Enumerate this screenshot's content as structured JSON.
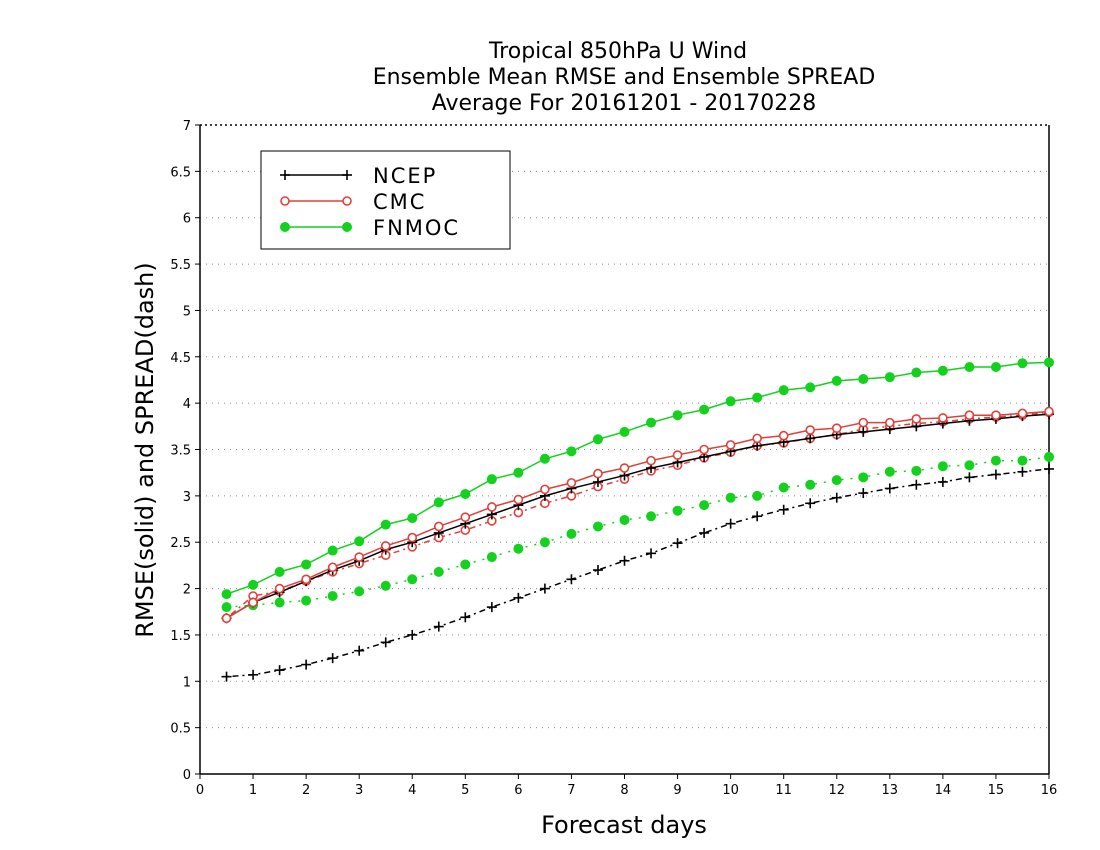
{
  "chart_data": {
    "type": "line",
    "title_lines": [
      "Tropical 850hPa U Wind",
      "Ensemble Mean RMSE and Ensemble SPREAD",
      "Average For 20161201 - 20170228"
    ],
    "xlabel": "Forecast days",
    "ylabel": "RMSE(solid) and SPREAD(dash)",
    "xlim": [
      0,
      16
    ],
    "ylim": [
      0,
      7
    ],
    "x_ticks": [
      "0",
      "1",
      "2",
      "3",
      "4",
      "5",
      "6",
      "7",
      "8",
      "9",
      "10",
      "11",
      "12",
      "13",
      "14",
      "15",
      "16"
    ],
    "y_ticks": [
      "0",
      "0.5",
      "1",
      "1.5",
      "2",
      "2.5",
      "3",
      "3.5",
      "4",
      "4.5",
      "5",
      "5.5",
      "6",
      "6.5",
      "7"
    ],
    "grid": "horizontal dotted",
    "legend_position": "top-left",
    "x": [
      0.5,
      1,
      1.5,
      2,
      2.5,
      3,
      3.5,
      4,
      4.5,
      5,
      5.5,
      6,
      6.5,
      7,
      7.5,
      8,
      8.5,
      9,
      9.5,
      10,
      10.5,
      11,
      11.5,
      12,
      12.5,
      13,
      13.5,
      14,
      14.5,
      15,
      15.5,
      16
    ],
    "series": [
      {
        "name": "NCEP",
        "color": "#000000",
        "marker": "plus",
        "rmse": [
          1.68,
          1.85,
          1.96,
          2.08,
          2.2,
          2.3,
          2.42,
          2.5,
          2.6,
          2.7,
          2.8,
          2.9,
          3.0,
          3.08,
          3.15,
          3.22,
          3.3,
          3.36,
          3.42,
          3.48,
          3.54,
          3.58,
          3.62,
          3.66,
          3.69,
          3.72,
          3.75,
          3.78,
          3.81,
          3.83,
          3.86,
          3.88
        ],
        "spread": [
          1.05,
          1.07,
          1.12,
          1.18,
          1.25,
          1.33,
          1.42,
          1.5,
          1.59,
          1.69,
          1.8,
          1.9,
          2.0,
          2.1,
          2.2,
          2.3,
          2.38,
          2.49,
          2.6,
          2.7,
          2.78,
          2.85,
          2.92,
          2.98,
          3.03,
          3.08,
          3.12,
          3.15,
          3.2,
          3.23,
          3.26,
          3.29
        ]
      },
      {
        "name": "CMC",
        "color": "#e0403a",
        "marker": "open-circle",
        "rmse": [
          1.68,
          1.85,
          2.0,
          2.1,
          2.23,
          2.34,
          2.46,
          2.55,
          2.67,
          2.77,
          2.88,
          2.96,
          3.07,
          3.14,
          3.24,
          3.3,
          3.38,
          3.44,
          3.5,
          3.55,
          3.62,
          3.65,
          3.71,
          3.73,
          3.79,
          3.79,
          3.83,
          3.84,
          3.87,
          3.87,
          3.89,
          3.91
        ],
        "spread": [
          1.68,
          1.92,
          1.97,
          2.08,
          2.18,
          2.27,
          2.36,
          2.45,
          2.55,
          2.63,
          2.73,
          2.82,
          2.92,
          3.0,
          3.1,
          3.18,
          3.27,
          3.33,
          3.41,
          3.47,
          3.54,
          3.57,
          3.62,
          3.66,
          3.72,
          3.75,
          3.78,
          3.8,
          3.83,
          3.85,
          3.87,
          3.9
        ]
      },
      {
        "name": "FNMOC",
        "color": "#14d11e",
        "marker": "filled-circle",
        "rmse": [
          1.94,
          2.04,
          2.18,
          2.26,
          2.41,
          2.51,
          2.69,
          2.76,
          2.93,
          3.02,
          3.18,
          3.25,
          3.4,
          3.48,
          3.61,
          3.69,
          3.79,
          3.87,
          3.93,
          4.02,
          4.06,
          4.14,
          4.17,
          4.24,
          4.26,
          4.28,
          4.33,
          4.35,
          4.39,
          4.39,
          4.43,
          4.44
        ],
        "spread": [
          1.8,
          1.82,
          1.85,
          1.87,
          1.92,
          1.97,
          2.03,
          2.1,
          2.18,
          2.26,
          2.34,
          2.43,
          2.5,
          2.59,
          2.67,
          2.74,
          2.78,
          2.84,
          2.9,
          2.98,
          3.0,
          3.09,
          3.12,
          3.17,
          3.2,
          3.26,
          3.27,
          3.32,
          3.33,
          3.38,
          3.38,
          3.42
        ]
      }
    ]
  }
}
